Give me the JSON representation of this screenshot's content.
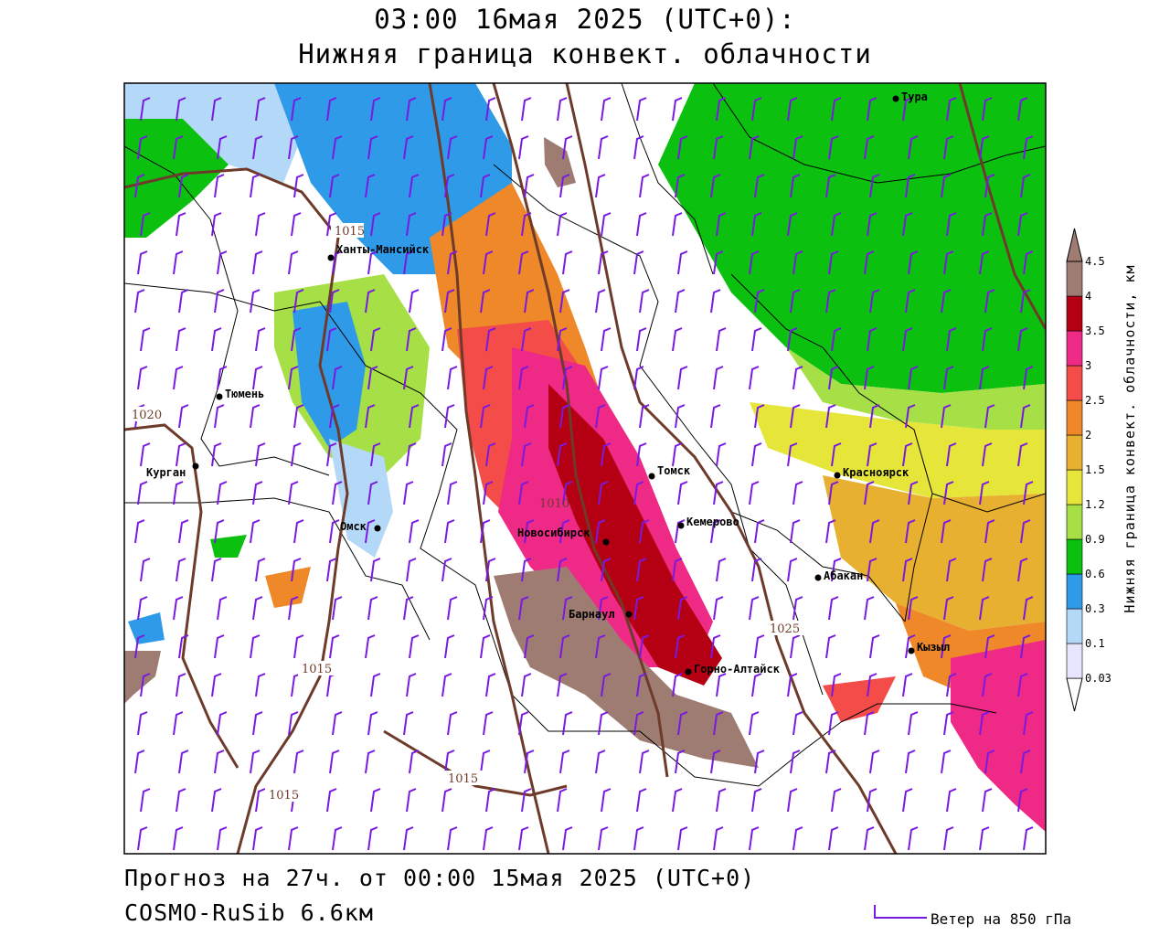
{
  "header": {
    "title_line1": "03:00 16мая 2025 (UTC+0):",
    "title_line2": "Нижняя граница конвект. облачности"
  },
  "footer": {
    "forecast_line": "Прогноз на 27ч. от 00:00 15мая 2025 (UTC+0)",
    "model_line": "COSMO-RuSib 6.6км",
    "wind_legend": "Ветер на 850 гПа"
  },
  "colorbar": {
    "axis_label": "Нижняя граница конвект. облачности, км",
    "levels": [
      {
        "label": "0.03",
        "color": "#e8e6ff"
      },
      {
        "label": "0.1",
        "color": "#b4d8f8"
      },
      {
        "label": "0.3",
        "color": "#2e9ae8"
      },
      {
        "label": "0.6",
        "color": "#0cc010"
      },
      {
        "label": "0.9",
        "color": "#a6e046"
      },
      {
        "label": "1.2",
        "color": "#e6e63a"
      },
      {
        "label": "1.5",
        "color": "#e8b030"
      },
      {
        "label": "2",
        "color": "#ee8828"
      },
      {
        "label": "2.5",
        "color": "#f44c48"
      },
      {
        "label": "3",
        "color": "#ee2a86"
      },
      {
        "label": "3.5",
        "color": "#b40012"
      },
      {
        "label": "4",
        "color": "#9e7c72"
      },
      {
        "label": "4.5",
        "color": ""
      }
    ]
  },
  "cities": [
    {
      "name": "Тура"
    },
    {
      "name": "Ханты-Мансийск"
    },
    {
      "name": "Тюмень"
    },
    {
      "name": "Курган"
    },
    {
      "name": "Омск"
    },
    {
      "name": "Новосибирск"
    },
    {
      "name": "Томск"
    },
    {
      "name": "Кемерово"
    },
    {
      "name": "Красноярск"
    },
    {
      "name": "Абакан"
    },
    {
      "name": "Барнаул"
    },
    {
      "name": "Горно-Алтайск"
    },
    {
      "name": "Кызыл"
    }
  ],
  "isobar_labels": [
    "1015",
    "1020",
    "1010",
    "1025",
    "1015",
    "1015",
    "1015"
  ],
  "colors": {
    "isobar": "#6e3b2a",
    "wind_barb": "#7a1ae0",
    "border": "#000000"
  }
}
